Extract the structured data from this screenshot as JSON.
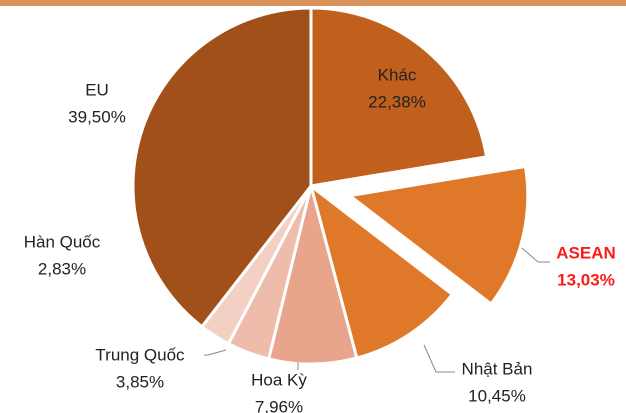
{
  "chart_data": {
    "type": "pie",
    "categories": [
      "Khác",
      "ASEAN",
      "Nhật Bản",
      "Hoa Kỳ",
      "Trung Quốc",
      "Hàn Quốc",
      "EU"
    ],
    "values": [
      22.38,
      13.03,
      10.45,
      7.96,
      3.85,
      2.83,
      39.5
    ],
    "value_labels": [
      "22,38%",
      "13,03%",
      "10,45%",
      "7,96%",
      "3,85%",
      "2,83%",
      "39,50%"
    ],
    "colors": [
      "#c0601c",
      "#e0782a",
      "#e0782a",
      "#e9a48c",
      "#efbcac",
      "#f3cfc4",
      "#a2501a"
    ],
    "exploded": [
      "ASEAN"
    ]
  }
}
